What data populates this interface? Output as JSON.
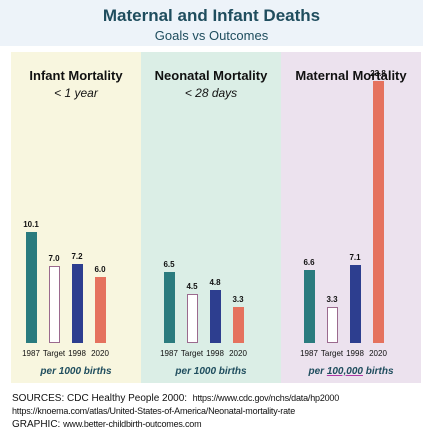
{
  "header": {
    "title": "Maternal and Infant Deaths",
    "subtitle": "Goals vs Outcomes"
  },
  "colors": {
    "header_bg": "#edf3f9",
    "panel_infant_bg": "#f8f6df",
    "panel_neonatal_bg": "#dbeee6",
    "panel_maternal_bg": "#ece2ee",
    "bar_1987": "#2a7b7e",
    "bar_target": "#ffffff",
    "bar_target_stroke": "#9b6a8e",
    "bar_1998": "#2d3e8f",
    "bar_2020": "#e5725e"
  },
  "chart_data": [
    {
      "type": "bar",
      "title": "Infant Mortality",
      "subtitle": "< 1 year",
      "categories": [
        "1987",
        "Target",
        "1998",
        "2020"
      ],
      "values": [
        10.1,
        7.0,
        7.2,
        6.0
      ],
      "value_labels": [
        "10.1",
        "7.0",
        "7.2",
        "6.0"
      ],
      "unit_prefix": "per 1000 births",
      "unit_highlight": "",
      "unit_suffix": ""
    },
    {
      "type": "bar",
      "title": "Neonatal Mortality",
      "subtitle": "< 28 days",
      "categories": [
        "1987",
        "Target",
        "1998",
        "2020"
      ],
      "values": [
        6.5,
        4.5,
        4.8,
        3.3
      ],
      "value_labels": [
        "6.5",
        "4.5",
        "4.8",
        "3.3"
      ],
      "unit_prefix": "per 1000 births",
      "unit_highlight": "",
      "unit_suffix": ""
    },
    {
      "type": "bar",
      "title": "Maternal Mortality",
      "subtitle": "",
      "categories": [
        "1987",
        "Target",
        "1998",
        "2020"
      ],
      "values": [
        6.6,
        3.3,
        7.1,
        23.8
      ],
      "value_labels": [
        "6.6",
        "3.3",
        "7.1",
        "23.8"
      ],
      "unit_prefix": "per ",
      "unit_highlight": "100,000",
      "unit_suffix": " births"
    }
  ],
  "footer": {
    "sources_label": "SOURCES: CDC Healthy People 2000:",
    "source_url_1": "https://www.cdc.gov/nchs/data/hp2000",
    "source_url_2": "https://knoema.com/atlas/United-States-of-America/Neonatal-mortality-rate",
    "graphic_label": "GRAPHIC:",
    "graphic_url": "www.better-childbirth-outcomes.com"
  }
}
